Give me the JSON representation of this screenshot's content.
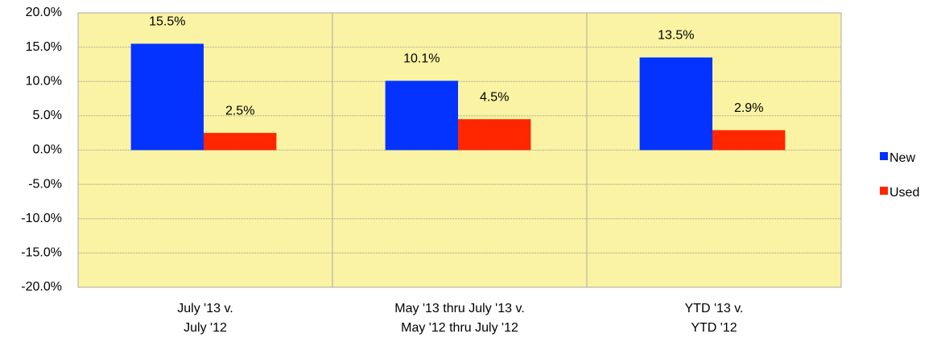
{
  "chart_data": {
    "type": "bar",
    "categories": [
      "July '13 v.\nJuly '12",
      "May '13 thru July '13 v.\nMay '12 thru July '12",
      "YTD '13 v.\nYTD '12"
    ],
    "series": [
      {
        "name": "New",
        "color": "#0433ff",
        "values": [
          15.5,
          10.1,
          13.5
        ],
        "value_labels": [
          "15.5%",
          "10.1%",
          "13.5%"
        ]
      },
      {
        "name": "Used",
        "color": "#ff2600",
        "values": [
          2.5,
          4.5,
          2.9
        ],
        "value_labels": [
          "2.5%",
          "4.5%",
          "2.9%"
        ]
      }
    ],
    "ylim": [
      -20,
      20
    ],
    "yticks": [
      {
        "value": -20,
        "label": "-20.0%"
      },
      {
        "value": -15,
        "label": "-15.0%"
      },
      {
        "value": -10,
        "label": "-10.0%"
      },
      {
        "value": -5,
        "label": "-5.0%"
      },
      {
        "value": 0,
        "label": "0.0%"
      },
      {
        "value": 5,
        "label": "5.0%"
      },
      {
        "value": 10,
        "label": "10.0%"
      },
      {
        "value": 15,
        "label": "15.0%"
      },
      {
        "value": 20,
        "label": "20.0%"
      }
    ],
    "grid": true,
    "plot_background": "#faf3a3",
    "legend": "right"
  }
}
